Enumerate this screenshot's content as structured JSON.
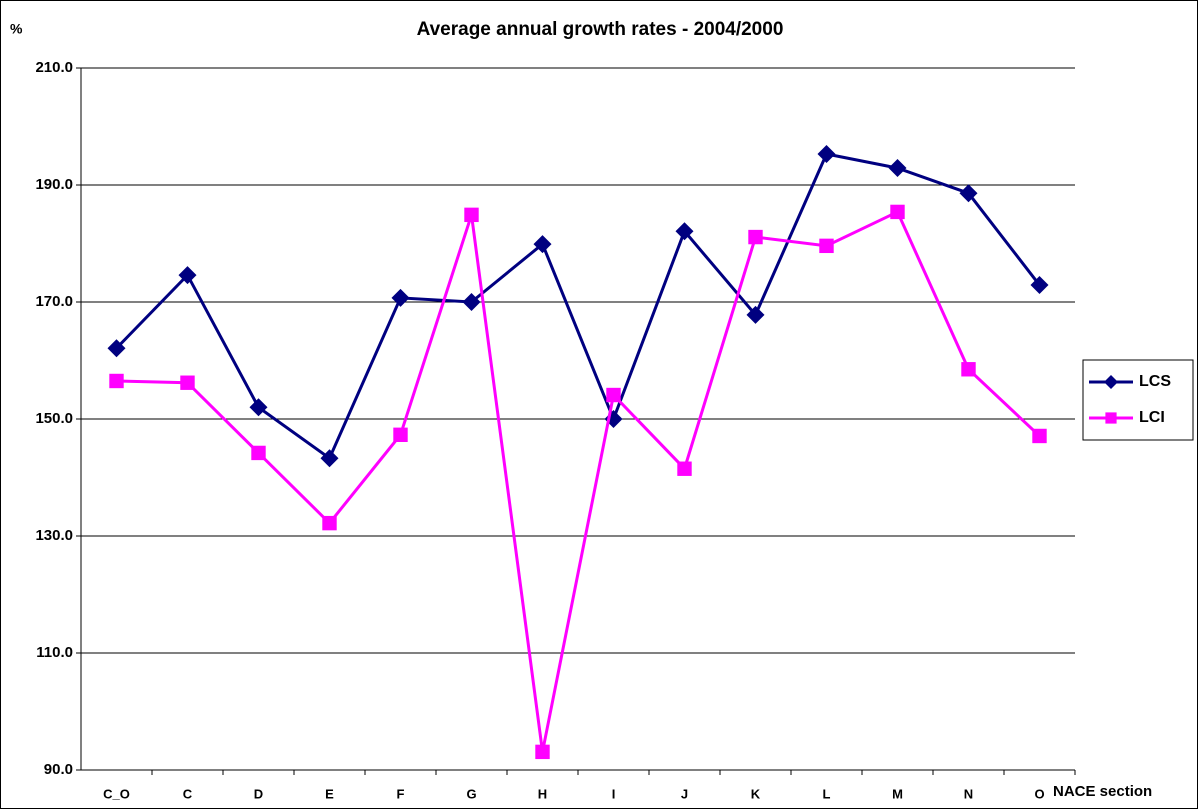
{
  "chart_data": {
    "type": "line",
    "title": "Average annual growth rates - 2004/2000",
    "ylabel": "%",
    "xlabel": "NACE section",
    "categories": [
      "C_O",
      "C",
      "D",
      "E",
      "F",
      "G",
      "H",
      "I",
      "J",
      "K",
      "L",
      "M",
      "N",
      "O"
    ],
    "series": [
      {
        "name": "LCS",
        "color": "#000080",
        "marker": "diamond",
        "values": [
          162.1,
          174.6,
          152.0,
          143.3,
          170.7,
          170.0,
          179.9,
          150.0,
          182.1,
          167.8,
          195.3,
          192.9,
          188.6,
          172.9
        ]
      },
      {
        "name": "LCI",
        "color": "#ff00ff",
        "marker": "square",
        "values": [
          156.5,
          156.2,
          144.2,
          132.2,
          147.3,
          184.9,
          93.1,
          154.1,
          141.5,
          181.1,
          179.6,
          185.4,
          158.5,
          147.1
        ]
      }
    ],
    "ylim": [
      90,
      210
    ],
    "yticks": [
      {
        "value": 90,
        "label": "90.0"
      },
      {
        "value": 110,
        "label": "110.0"
      },
      {
        "value": 130,
        "label": "130.0"
      },
      {
        "value": 150,
        "label": "150.0"
      },
      {
        "value": 170,
        "label": "170.0"
      },
      {
        "value": 190,
        "label": "190.0"
      },
      {
        "value": 210,
        "label": "210.0"
      }
    ],
    "grid": true,
    "legend": "right"
  }
}
